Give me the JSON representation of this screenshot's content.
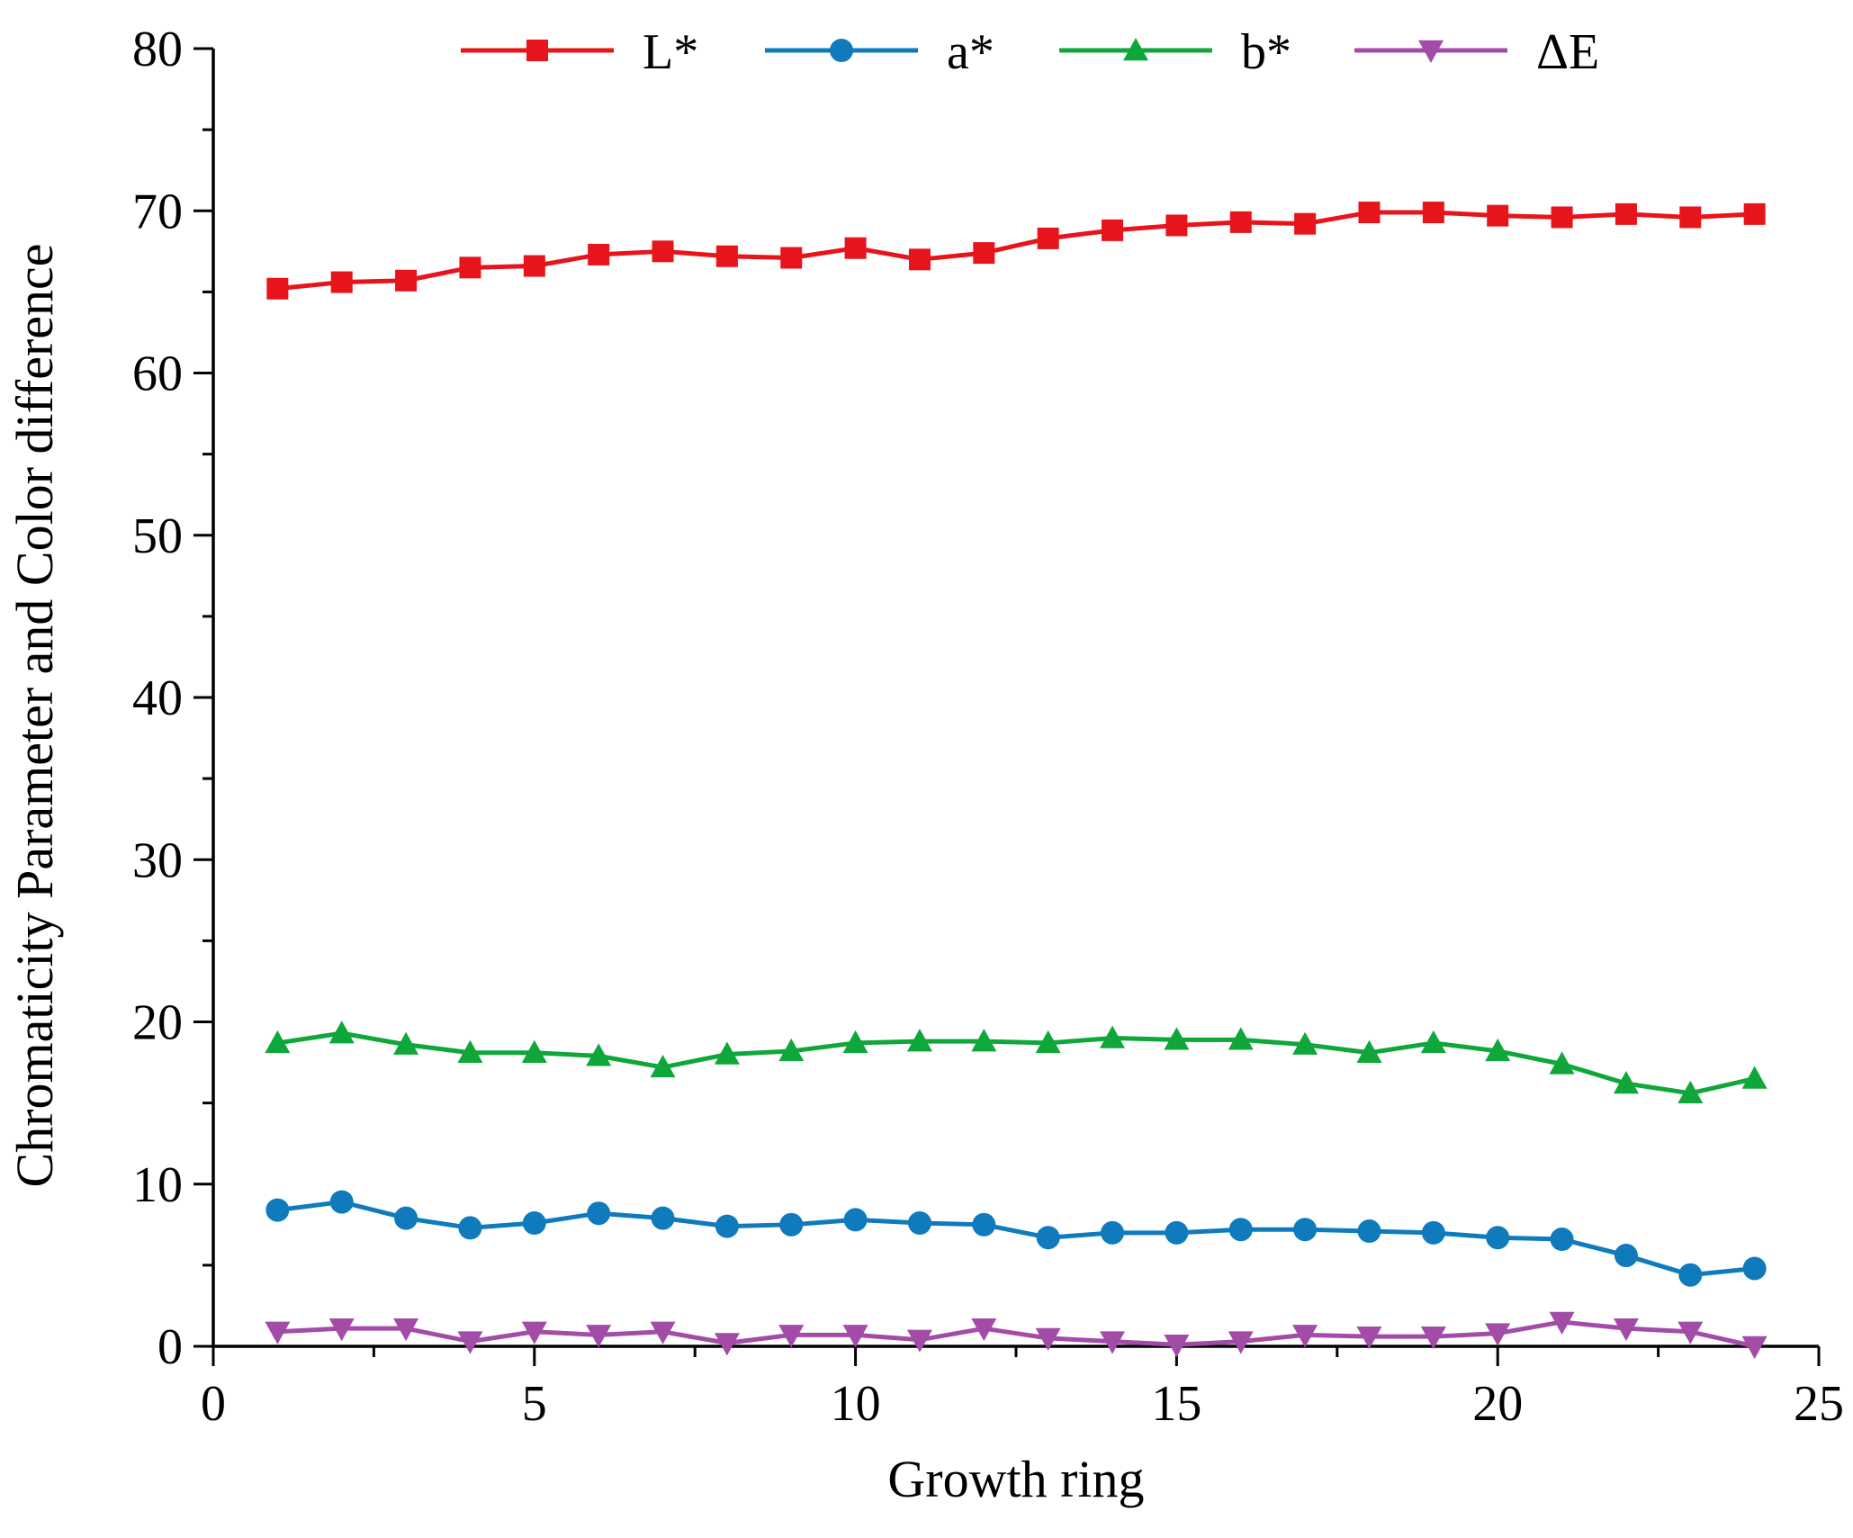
{
  "chart_data": {
    "type": "line",
    "xlabel": "Growth ring",
    "ylabel": "Chromaticity Parameter and Color difference",
    "xlim": [
      0,
      25
    ],
    "ylim": [
      0,
      80
    ],
    "xticks": [
      0,
      5,
      10,
      15,
      20,
      25
    ],
    "yticks": [
      0,
      10,
      20,
      30,
      40,
      50,
      60,
      70,
      80
    ],
    "grid": false,
    "legend_position": "top",
    "x": [
      1,
      2,
      3,
      4,
      5,
      6,
      7,
      8,
      9,
      10,
      11,
      12,
      13,
      14,
      15,
      16,
      17,
      18,
      19,
      20,
      21,
      22,
      23,
      24
    ],
    "series": [
      {
        "name": "L*",
        "color": "#e8141b",
        "marker": "square",
        "values": [
          65.2,
          65.6,
          65.7,
          66.5,
          66.6,
          67.3,
          67.5,
          67.2,
          67.1,
          67.7,
          67.0,
          67.4,
          68.3,
          68.8,
          69.1,
          69.3,
          69.2,
          69.9,
          69.9,
          69.7,
          69.6,
          69.8,
          69.6,
          69.8
        ]
      },
      {
        "name": "a*",
        "color": "#0f7bbd",
        "marker": "circle",
        "values": [
          8.4,
          8.9,
          7.9,
          7.3,
          7.6,
          8.2,
          7.9,
          7.4,
          7.5,
          7.8,
          7.6,
          7.5,
          6.7,
          7.0,
          7.0,
          7.2,
          7.2,
          7.1,
          7.0,
          6.7,
          6.6,
          5.6,
          4.4,
          4.8
        ]
      },
      {
        "name": "b*",
        "color": "#0fa63a",
        "marker": "triangle-up",
        "values": [
          18.7,
          19.3,
          18.6,
          18.1,
          18.1,
          17.9,
          17.2,
          18.0,
          18.2,
          18.7,
          18.8,
          18.8,
          18.7,
          19.0,
          18.9,
          18.9,
          18.6,
          18.1,
          18.7,
          18.2,
          17.4,
          16.2,
          15.6,
          16.5
        ]
      },
      {
        "name": "ΔE",
        "color": "#a24ca8",
        "marker": "triangle-down",
        "values": [
          0.9,
          1.1,
          1.1,
          0.3,
          0.9,
          0.7,
          0.9,
          0.2,
          0.7,
          0.7,
          0.4,
          1.1,
          0.5,
          0.3,
          0.1,
          0.3,
          0.7,
          0.6,
          0.6,
          0.8,
          1.5,
          1.1,
          0.9,
          0.0
        ]
      }
    ]
  }
}
